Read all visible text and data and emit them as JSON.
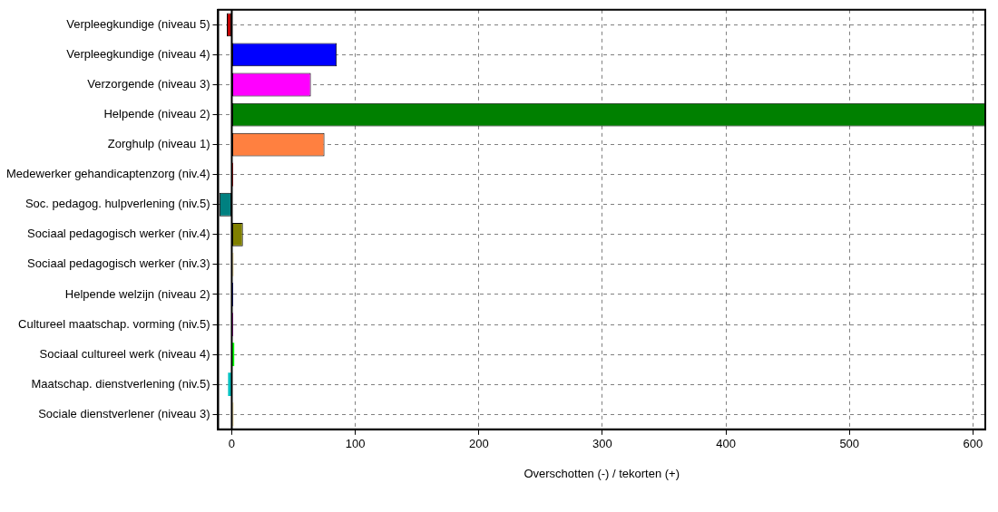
{
  "chart_data": {
    "type": "bar",
    "orientation": "horizontal",
    "xlabel": "Overschotten (-) / tekorten (+)",
    "categories": [
      "Verpleegkundige (niveau 5)",
      "Verpleegkundige (niveau 4)",
      "Verzorgende (niveau 3)",
      "Helpende (niveau 2)",
      "Zorghulp (niveau 1)",
      "Medewerker gehandicaptenzorg (niv.4)",
      "Soc. pedagog. hulpverlening (niv.5)",
      "Sociaal pedagogisch werker (niv.4)",
      "Sociaal pedagogisch werker (niv.3)",
      "Helpende welzijn (niveau 2)",
      "Cultureel maatschap. vorming (niv.5)",
      "Sociaal cultureel werk (niveau 4)",
      "Maatschap. dienstverlening (niv.5)",
      "Sociale dienstverlener (niveau 3)"
    ],
    "values": [
      -4,
      85,
      64,
      610,
      75,
      1,
      -10,
      9,
      1.5,
      1,
      1,
      2,
      -3,
      1.5
    ],
    "colors": [
      "#c00000",
      "#0000ff",
      "#ff00ff",
      "#008000",
      "#ff8040",
      "#c00000",
      "#008080",
      "#808000",
      "#f0e0b0",
      "#000080",
      "#a000a0",
      "#00ff00",
      "#00c0c0",
      "#f0e0b0"
    ],
    "xlim": [
      -11,
      610
    ],
    "xticks": [
      0,
      100,
      200,
      300,
      400,
      500,
      600
    ],
    "grid": true,
    "line_style": "dashed"
  }
}
